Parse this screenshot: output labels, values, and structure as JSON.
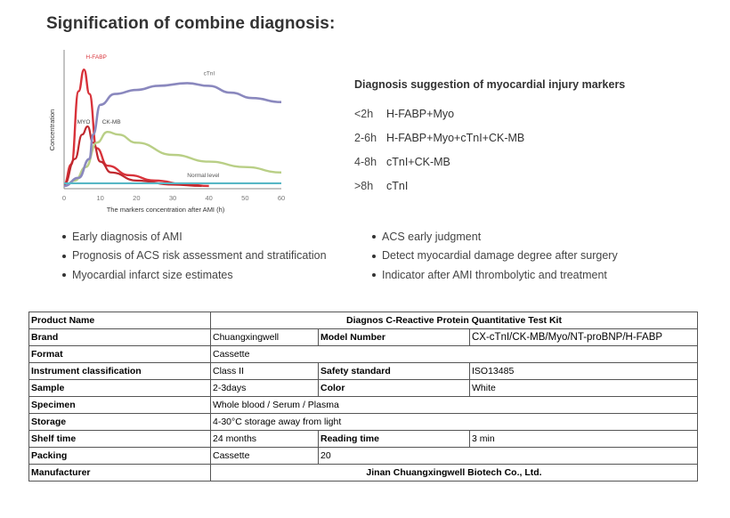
{
  "title": "Signification of combine diagnosis:",
  "chart_data": {
    "type": "line",
    "xlabel": "The markers concentration after AMI (h)",
    "ylabel": "Concentration",
    "x_ticks": [
      0,
      10,
      20,
      30,
      40,
      50,
      60
    ],
    "xlim": [
      0,
      60
    ],
    "ylim": [
      0,
      100
    ],
    "series": [
      {
        "name": "H-FABP",
        "color": "#d8323a",
        "x": [
          0,
          2,
          4,
          5.5,
          7,
          9,
          12,
          18,
          25,
          34,
          40
        ],
        "y": [
          3,
          18,
          72,
          88,
          70,
          30,
          17,
          10,
          6,
          3,
          2
        ]
      },
      {
        "name": "MYO",
        "color": "#c0282e",
        "x": [
          0,
          3,
          5,
          6.5,
          8,
          10,
          13,
          20,
          30,
          38
        ],
        "y": [
          3,
          22,
          40,
          46,
          34,
          20,
          12,
          6,
          3,
          2
        ]
      },
      {
        "name": "CK-MB",
        "color": "#b9cf86",
        "x": [
          0,
          3,
          6,
          9,
          12,
          15,
          20,
          30,
          40,
          50,
          60
        ],
        "y": [
          2,
          6,
          16,
          34,
          42,
          40,
          34,
          25,
          20,
          16,
          12
        ]
      },
      {
        "name": "cTnI",
        "color": "#8a88be",
        "x": [
          0,
          4,
          7,
          8,
          10,
          14,
          20,
          26,
          34,
          40,
          46,
          52,
          60
        ],
        "y": [
          2,
          8,
          22,
          40,
          62,
          70,
          73,
          76,
          78,
          76,
          71,
          67,
          64
        ]
      },
      {
        "name": "Normal level",
        "color": "#58b7c6",
        "x": [
          0,
          60
        ],
        "y": [
          4,
          4
        ]
      }
    ],
    "annotations": [
      "H-FABP",
      "MYO",
      "CK-MB",
      "cTnI",
      "Normal level"
    ]
  },
  "suggestion": {
    "title": "Diagnosis suggestion of myocardial injury markers",
    "rows": [
      {
        "time": "<2h",
        "markers": "H-FABP+Myo"
      },
      {
        "time": "2-6h",
        "markers": "H-FABP+Myo+cTnI+CK-MB"
      },
      {
        "time": "4-8h",
        "markers": "cTnI+CK-MB"
      },
      {
        "time": ">8h",
        "markers": "cTnI"
      }
    ]
  },
  "bullets_left": [
    "Early diagnosis of AMI",
    "Prognosis of ACS risk assessment and stratification",
    "Myocardial infarct size estimates"
  ],
  "bullets_right": [
    "ACS early judgment",
    "Detect myocardial damage degree after surgery",
    "Indicator after AMI thrombolytic and treatment"
  ],
  "table": {
    "product_name_label": "Product Name",
    "product_name_value": "Diagnos C-Reactive Protein Quantitative Test Kit",
    "brand_label": "Brand",
    "brand_value": "Chuangxingwell",
    "model_label": "Model Number",
    "model_value": "CX-cTnI/CK-MB/Myo/NT-proBNP/H-FABP",
    "format_label": "Format",
    "format_value": "Cassette",
    "instrument_label": "Instrument classification",
    "instrument_value": "Class II",
    "safety_label": "Safety standard",
    "safety_value": "ISO13485",
    "sample_label": "Sample",
    "sample_value": "2-3days",
    "color_label": "Color",
    "color_value": "White",
    "specimen_label": "Specimen",
    "specimen_value": "Whole blood / Serum / Plasma",
    "storage_label": "Storage",
    "storage_value": "4-30°C storage away from light",
    "shelf_label": "Shelf time",
    "shelf_value": "24 months",
    "reading_label": "Reading time",
    "reading_value": "3 min",
    "packing_label": "Packing",
    "packing_value": "Cassette",
    "packing_qty": "20",
    "manufacturer_label": "Manufacturer",
    "manufacturer_value": "Jinan Chuangxingwell Biotech Co., Ltd."
  }
}
